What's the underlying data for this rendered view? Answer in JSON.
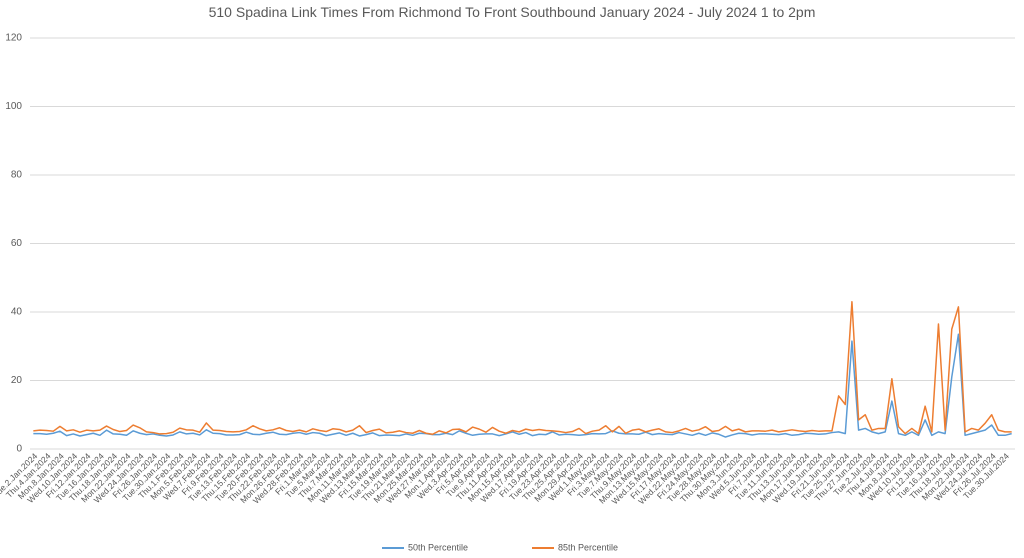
{
  "chart_data": {
    "type": "line",
    "title": "510 Spadina Link Times From Richmond To Front Southbound January 2024 - July 2024 1 to 2pm",
    "categories": [
      "Tue.2.Jan.2024",
      null,
      "Thu.4.Jan.2024",
      null,
      "Mon.8.Jan.2024",
      null,
      "Wed.10.Jan.2024",
      null,
      "Fri.12.Jan.2024",
      null,
      "Tue.16.Jan.2024",
      null,
      "Thu.18.Jan.2024",
      null,
      "Mon.22.Jan.2024",
      null,
      "Wed.24.Jan.2024",
      null,
      "Fri.26.Jan.2024",
      null,
      "Tue.30.Jan.2024",
      null,
      "Thu.1.Feb.2024",
      null,
      "Mon.5.Feb.2024",
      null,
      "Wed.7.Feb.2024",
      null,
      "Fri.9.Feb.2024",
      null,
      "Tue.13.Feb.2024",
      null,
      "Thu.15.Feb.2024",
      null,
      "Tue.20.Feb.2024",
      null,
      "Thu.22.Feb.2024",
      null,
      "Mon.26.Feb.2024",
      null,
      "Wed.28.Feb.2024",
      null,
      "Fri.1.Mar.2024",
      null,
      "Tue.5.Mar.2024",
      null,
      "Thu.7.Mar.2024",
      null,
      "Mon.11.Mar.2024",
      null,
      "Wed.13.Mar.2024",
      null,
      "Fri.15.Mar.2024",
      null,
      "Tue.19.Mar.2024",
      null,
      "Thu.21.Mar.2024",
      null,
      "Mon.25.Mar.2024",
      null,
      "Wed.27.Mar.2024",
      null,
      "Mon.1.Apr.2024",
      null,
      "Wed.3.Apr.2024",
      null,
      "Fri.5.Apr.2024",
      null,
      "Tue.9.Apr.2024",
      null,
      "Thu.11.Apr.2024",
      null,
      "Mon.15.Apr.2024",
      null,
      "Wed.17.Apr.2024",
      null,
      "Fri.19.Apr.2024",
      null,
      "Tue.23.Apr.2024",
      null,
      "Thu.25.Apr.2024",
      null,
      "Mon.29.Apr.2024",
      null,
      "Wed.1.May.2024",
      null,
      "Fri.3.May.2024",
      null,
      "Tue.7.May.2024",
      null,
      "Thu.9.May.2024",
      null,
      "Mon.13.May.2024",
      null,
      "Wed.15.May.2024",
      null,
      "Fri.17.May.2024",
      null,
      "Wed.22.May.2024",
      null,
      "Fri.24.May.2024",
      null,
      "Tue.28.May.2024",
      null,
      "Thu.30.May.2024",
      null,
      "Mon.3.Jun.2024",
      null,
      "Wed.5.Jun.2024",
      null,
      "Fri.7.Jun.2024",
      null,
      "Tue.11.Jun.2024",
      null,
      "Thu.13.Jun.2024",
      null,
      "Mon.17.Jun.2024",
      null,
      "Wed.19.Jun.2024",
      null,
      "Fri.21.Jun.2024",
      null,
      "Tue.25.Jun.2024",
      null,
      "Thu.27.Jun.2024",
      null,
      "Tue.2.Jul.2024",
      null,
      "Thu.4.Jul.2024",
      null,
      "Mon.8.Jul.2024",
      null,
      "Wed.10.Jul.2024",
      null,
      "Fri.12.Jul.2024",
      null,
      "Tue.16.Jul.2024",
      null,
      "Thu.18.Jul.2024",
      null,
      "Mon.22.Jul.2024",
      null,
      "Wed.24.Jul.2024",
      null,
      "Fri.26.Jul.2024",
      null,
      "Tue.30.Jul.2024",
      null
    ],
    "series": [
      {
        "name": "50th Percentile",
        "color": "#5b9bd5",
        "values": [
          4.5,
          4.5,
          4.3,
          4.6,
          5.2,
          3.9,
          4.4,
          3.8,
          4.2,
          4.6,
          4.0,
          5.5,
          4.4,
          4.3,
          4.0,
          5.3,
          4.6,
          4.2,
          4.4,
          4.0,
          3.8,
          4.1,
          5.0,
          4.4,
          4.6,
          4.1,
          5.6,
          4.6,
          4.5,
          4.1,
          4.1,
          4.2,
          4.9,
          4.3,
          4.2,
          4.6,
          4.9,
          4.3,
          4.2,
          4.6,
          4.8,
          4.3,
          4.8,
          4.6,
          3.9,
          4.3,
          4.7,
          4.0,
          4.6,
          3.8,
          4.2,
          4.7,
          3.9,
          4.1,
          4.0,
          3.9,
          4.4,
          4.0,
          4.6,
          4.5,
          4.2,
          4.2,
          4.6,
          4.2,
          5.3,
          4.6,
          4.0,
          4.3,
          4.4,
          4.4,
          3.9,
          4.4,
          5.0,
          4.3,
          4.8,
          3.9,
          4.3,
          4.2,
          5.0,
          4.1,
          4.3,
          4.2,
          4.0,
          4.2,
          4.5,
          4.4,
          4.5,
          5.3,
          4.6,
          4.4,
          4.4,
          4.3,
          4.9,
          4.2,
          4.5,
          4.3,
          4.2,
          4.8,
          4.4,
          4.0,
          4.6,
          4.0,
          4.7,
          4.3,
          3.5,
          4.1,
          4.6,
          4.5,
          4.1,
          4.4,
          4.4,
          4.3,
          4.2,
          4.5,
          4.0,
          4.2,
          4.6,
          4.5,
          4.3,
          4.4,
          4.8,
          5,
          4.5,
          31.5,
          5.5,
          6,
          5,
          4.5,
          5,
          14,
          4.5,
          4,
          5,
          4,
          8.5,
          4,
          5,
          4.5,
          21,
          33.5,
          4,
          4.5,
          5,
          5.5,
          7,
          4,
          4,
          4.5
        ]
      },
      {
        "name": "85th Percentile",
        "color": "#ed7d31",
        "values": [
          5.3,
          5.5,
          5.4,
          5.2,
          6.6,
          5.3,
          5.6,
          4.9,
          5.5,
          5.3,
          5.5,
          6.7,
          5.7,
          5.1,
          5.4,
          7.0,
          6.2,
          5.0,
          4.8,
          4.4,
          4.5,
          4.9,
          6.1,
          5.6,
          5.5,
          4.9,
          7.6,
          5.5,
          5.4,
          5.1,
          5.0,
          5.1,
          5.6,
          6.8,
          5.9,
          5.3,
          5.6,
          6.2,
          5.4,
          5.1,
          5.5,
          5.0,
          5.9,
          5.4,
          5.1,
          5.9,
          5.7,
          5.0,
          5.5,
          6.8,
          4.8,
          5.4,
          5.8,
          4.7,
          4.9,
          5.3,
          4.8,
          4.6,
          5.4,
          4.6,
          4.3,
          5.3,
          4.7,
          5.7,
          5.8,
          5.0,
          6.4,
          5.8,
          4.9,
          6.3,
          5.2,
          4.6,
          5.4,
          5.0,
          5.8,
          5.4,
          5.7,
          5.4,
          5.3,
          5.1,
          4.8,
          5.1,
          6.0,
          4.5,
          5.2,
          5.5,
          6.8,
          5.0,
          6.6,
          4.6,
          5.5,
          5.8,
          5.0,
          5.5,
          5.9,
          5.0,
          4.8,
          5.3,
          6.0,
          5.2,
          5.6,
          6.5,
          5.1,
          5.4,
          6.6,
          5.3,
          5.8,
          5.0,
          5.3,
          5.3,
          5.2,
          5.5,
          5.0,
          5.3,
          5.6,
          5.3,
          5.1,
          5.4,
          5.2,
          5.3,
          5.3,
          15.5,
          13,
          43,
          8.5,
          10,
          5.5,
          6,
          6,
          20.5,
          6.5,
          4.5,
          6,
          4.5,
          12.5,
          5,
          36.5,
          5.5,
          35,
          41.5,
          5,
          6,
          5.5,
          7.5,
          10,
          5.5,
          5,
          5
        ]
      }
    ],
    "ylim": [
      0,
      120
    ],
    "yticks": [
      0,
      20,
      40,
      60,
      80,
      100,
      120
    ],
    "grid": true,
    "legend": "bottom"
  }
}
